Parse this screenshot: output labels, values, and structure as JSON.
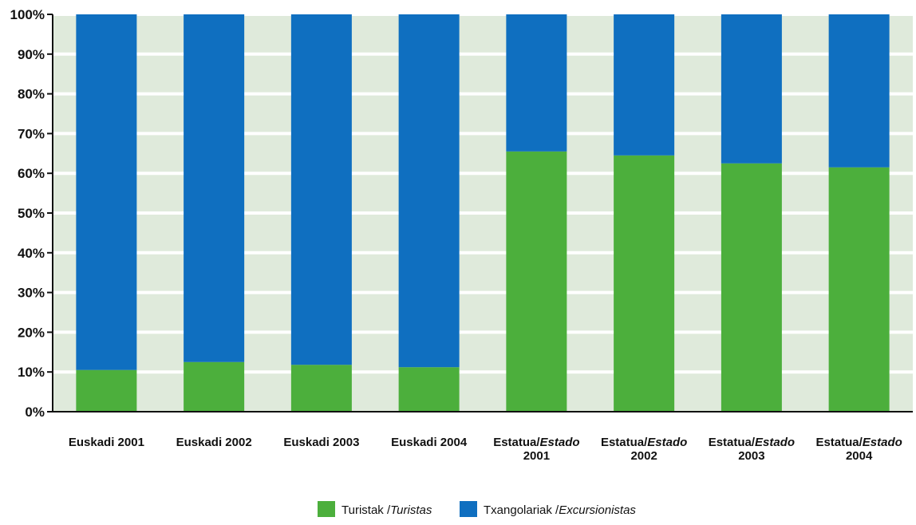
{
  "chart_data": {
    "type": "bar",
    "stacked": true,
    "grid": true,
    "legend_position": "bottom-center",
    "ylim": [
      0,
      100
    ],
    "yticks": [
      "0%",
      "10%",
      "20%",
      "30%",
      "40%",
      "50%",
      "60%",
      "70%",
      "80%",
      "90%",
      "100%"
    ],
    "categories": [
      {
        "line1": "Euskadi  2001",
        "line1_prefix": "",
        "line1_italic": "",
        "line2": ""
      },
      {
        "line1": "Euskadi  2002",
        "line1_prefix": "",
        "line1_italic": "",
        "line2": ""
      },
      {
        "line1": "Euskadi  2003",
        "line1_prefix": "",
        "line1_italic": "",
        "line2": ""
      },
      {
        "line1": "Euskadi  2004",
        "line1_prefix": "",
        "line1_italic": "",
        "line2": ""
      },
      {
        "line1": "",
        "line1_prefix": "Estatua/",
        "line1_italic": "Estado",
        "line2": "2001"
      },
      {
        "line1": "",
        "line1_prefix": "Estatua/",
        "line1_italic": "Estado",
        "line2": "2002"
      },
      {
        "line1": "",
        "line1_prefix": "Estatua/",
        "line1_italic": "Estado",
        "line2": "2003"
      },
      {
        "line1": "",
        "line1_prefix": "Estatua/",
        "line1_italic": "Estado",
        "line2": "2004"
      }
    ],
    "series": [
      {
        "name": "Turistak / Turistas",
        "name_prefix": "Turistak /",
        "name_italic": "Turistas",
        "color": "#4caf3c",
        "values": [
          10.5,
          12.5,
          11.8,
          11.2,
          65.5,
          64.5,
          62.5,
          61.5
        ]
      },
      {
        "name": "Txangolariak / Excursionistas",
        "name_prefix": "Txangolariak /",
        "name_italic": "Excursionistas",
        "color": "#0f6fc0",
        "values": [
          89.5,
          87.5,
          88.2,
          88.8,
          34.5,
          35.5,
          37.5,
          38.5
        ]
      }
    ],
    "colors": {
      "plot_background": "#dfeadb",
      "gridline": "#ffffff",
      "axis": "#111111"
    }
  }
}
